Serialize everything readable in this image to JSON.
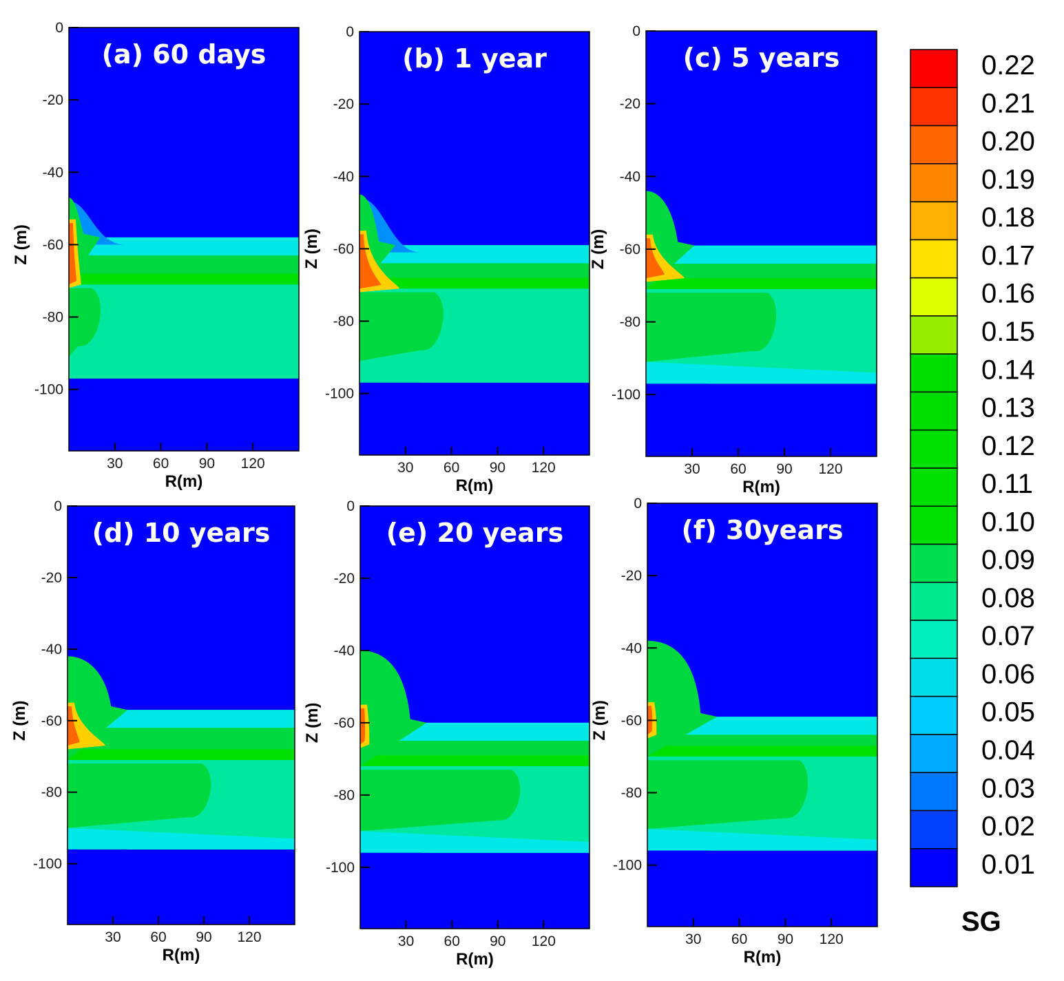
{
  "chart_data": {
    "type": "heatmap",
    "variable": "SG",
    "colorbar": {
      "title": "SG",
      "levels": [
        "0.22",
        "0.21",
        "0.20",
        "0.19",
        "0.18",
        "0.17",
        "0.16",
        "0.15",
        "0.14",
        "0.13",
        "0.12",
        "0.11",
        "0.10",
        "0.09",
        "0.08",
        "0.07",
        "0.06",
        "0.05",
        "0.04",
        "0.03",
        "0.02",
        "0.01"
      ],
      "colors": [
        "#ff0000",
        "#ff3300",
        "#ff6600",
        "#ff8800",
        "#ffb000",
        "#ffe000",
        "#ddff00",
        "#99ee00",
        "#00dd00",
        "#00dd00",
        "#00e000",
        "#00e000",
        "#00e000",
        "#00e050",
        "#00e890",
        "#00eebb",
        "#00dde8",
        "#00ccff",
        "#00aaff",
        "#0077ff",
        "#0040ff",
        "#0000ff"
      ]
    },
    "colors": {
      "background": "#0000ff",
      "cap": "#00e8a0",
      "core": "#00cc40",
      "body": "#00d840",
      "bright": "#00e000",
      "hot_outer": "#ffd000",
      "hot_inner": "#ff6600",
      "glow1": "#00c8ff",
      "glow2": "#0090ff",
      "cyan_band": "#00e8e8",
      "sky_band": "#00bbff"
    },
    "axes": {
      "xlabel": "R(m)",
      "ylabel": "Z (m)",
      "xlim": [
        0,
        150
      ],
      "ylim": [
        -117,
        0
      ],
      "xticks": [
        "30",
        "60",
        "90",
        "120"
      ],
      "yticks": [
        "0",
        "-20",
        "-40",
        "-60",
        "-80",
        "-100"
      ]
    },
    "panels": [
      {
        "title": "(a) 60 days",
        "plume_top": -47,
        "cone_width": 7,
        "hot_top": -53,
        "hot_bottom": -72,
        "hot_width": 8,
        "hot_inner_width": 5,
        "band_top": -58,
        "band_mid": -71,
        "band_bottom": -97,
        "band_shift": 0,
        "front_end": 24,
        "bottom_sag": 0,
        "cyan_extent": 0,
        "glow": true
      },
      {
        "title": "(b) 1 year",
        "plume_top": -45,
        "cone_width": 10,
        "hot_top": -55,
        "hot_bottom": -72,
        "hot_width": 26,
        "hot_inner_width": 14,
        "band_top": -59,
        "band_mid": -71,
        "band_bottom": -97,
        "band_shift": 0,
        "front_end": 58,
        "bottom_sag": 2,
        "cyan_extent": 0,
        "glow": true
      },
      {
        "title": "(c) 5 years",
        "plume_top": -44,
        "cone_width": 18,
        "hot_top": -56,
        "hot_bottom": -69,
        "hot_width": 25,
        "hot_inner_width": 12,
        "band_top": -59,
        "band_mid": -71,
        "band_bottom": -97,
        "band_shift": 0,
        "front_end": 88,
        "bottom_sag": 5,
        "cyan_extent": 20,
        "glow": false
      },
      {
        "title": "(d) 10 years",
        "plume_top": -42,
        "cone_width": 26,
        "hot_top": -55,
        "hot_bottom": -68,
        "hot_width": 25,
        "hot_inner_width": 8,
        "band_top": -57,
        "band_mid": -71,
        "band_bottom": -96,
        "band_shift": 0,
        "front_end": 98,
        "bottom_sag": 4,
        "cyan_extent": 40,
        "glow": false
      },
      {
        "title": "(e) 20 years",
        "plume_top": -40,
        "cone_width": 30,
        "hot_top": -55,
        "hot_bottom": -67,
        "hot_width": 6,
        "hot_inner_width": 3,
        "band_top": -60,
        "band_mid": -72,
        "band_bottom": -96,
        "band_shift": 0,
        "front_end": 108,
        "bottom_sag": 5,
        "cyan_extent": 70,
        "glow": false
      },
      {
        "title": "(f) 30years",
        "plume_top": -38,
        "cone_width": 32,
        "hot_top": -55,
        "hot_bottom": -65,
        "hot_width": 6,
        "hot_inner_width": 3,
        "band_top": -59,
        "band_mid": -70,
        "band_bottom": -96,
        "band_shift": 0,
        "front_end": 108,
        "bottom_sag": 6,
        "cyan_extent": 80,
        "glow": false
      }
    ]
  }
}
